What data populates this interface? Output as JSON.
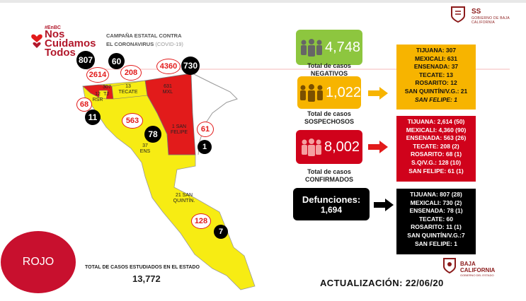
{
  "brand": {
    "small": "#EnBC",
    "name": "Nos Cuidamos Todos"
  },
  "campaign": {
    "line1": "CAMPAÑA ESTATAL CONTRA",
    "line2": "EL CORONAVIRUS",
    "line2_sub": "(COVID-19)"
  },
  "header_logo": {
    "title": "SS",
    "subtitle": "GOBIERNO DE BAJA CALIFORNIA"
  },
  "footer_logo": {
    "title": "BAJA CALIFORNIA",
    "subtitle": "GOBIERNO DEL ESTADO"
  },
  "map": {
    "badges": {
      "tij_deaths": "807",
      "tec_deaths": "60",
      "tij_confirmed": "2614",
      "tec_confirmed": "208",
      "mxl_confirmed": "4360",
      "mxl_deaths": "730",
      "ros_confirmed": "68",
      "ros_deaths": "11",
      "ens_confirmed": "563",
      "ens_deaths": "78",
      "sf_confirmed": "61",
      "sf_deaths": "1",
      "sq_confirmed": "128",
      "sq_deaths": "7"
    },
    "labels": {
      "tij": "307",
      "rsr": "12 RSR",
      "tij_q": "TJ",
      "tec": "13 TECATE",
      "mxl": "631 MXL",
      "sf": "1 SAN FELIPE",
      "ens": "37 ENS",
      "sq": "21 SAN QUINTÍN."
    }
  },
  "alert_level": "ROJO",
  "total_studied": {
    "label": "TOTAL DE CASOS ESTUDIADOS EN EL ESTADO",
    "value": "13,772"
  },
  "negatives": {
    "value": "4,748",
    "label": "Total de casos NEGATIVOS",
    "color": "#8dc63f"
  },
  "suspects": {
    "value": "1,022",
    "label": "Total de casos SOSPECHOSOS",
    "color": "#f7b400",
    "list": [
      "TIJUANA: 307",
      "MEXICALI: 631",
      "ENSENADA: 37",
      "TECATE: 13",
      "ROSARITO: 12",
      "SAN QUINTÍN/V.G.: 21",
      "SAN FELIPE: 1"
    ]
  },
  "confirmed": {
    "value": "8,002",
    "label": "Total de casos CONFIRMADOS",
    "color": "#d0021b",
    "list": [
      "TIJUANA: 2,614 (50)",
      "MEXICALI: 4,360 (90)",
      "ENSENADA: 563 (26)",
      "TECATE: 208 (2)",
      "ROSARITO: 68 (1)",
      "S.Q/V.G.: 128 (10)",
      "SAN FELIPE: 61 (1)"
    ]
  },
  "deaths": {
    "label": "Defunciones:",
    "value": "1,694",
    "list": [
      "TIJUANA: 807 (28)",
      "MEXICALI: 730 (2)",
      "ENSENADA: 78 (1)",
      "TECATE: 60",
      "ROSARITO: 11 (1)",
      "SAN QUINTÍN/V.G.:7",
      "SAN FELIPE: 1"
    ]
  },
  "update": "ACTUALIZACIÓN:  22/06/20"
}
